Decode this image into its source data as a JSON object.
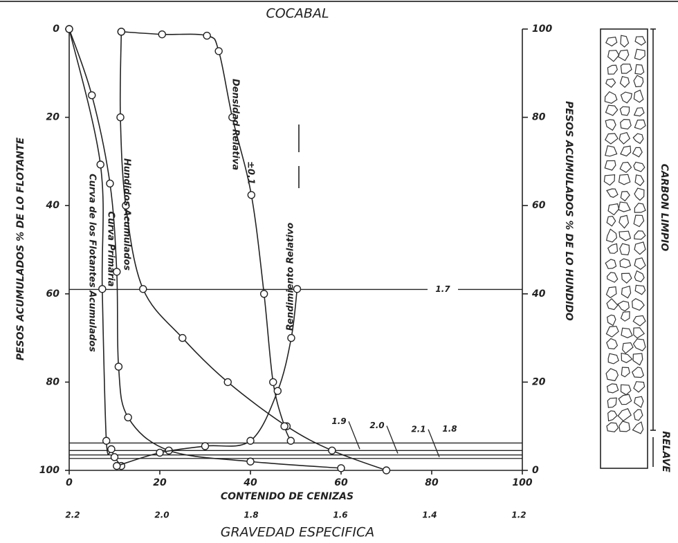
{
  "chart_data": {
    "type": "line",
    "title": "COCABAL",
    "xlabel": "CONTENIDO DE CENIZAS",
    "x2label": "GRAVEDAD ESPECIFICA",
    "ylabel": "PESOS ACUMULADOS % DE LO FLOTANTE",
    "y2label": "PESOS ACUMULADOS % DE LO HUNDIDO",
    "xlim": [
      0,
      100
    ],
    "xticks": [
      0,
      20,
      40,
      60,
      80,
      100
    ],
    "x2lim": [
      2.2,
      1.2
    ],
    "x2ticks": [
      2.2,
      {
        "value": 2,
        "label": "2.0"
      },
      1.8,
      1.6,
      1.4,
      1.2
    ],
    "ylim": [
      100,
      0
    ],
    "yticks": [
      0,
      20,
      40,
      60,
      80,
      100
    ],
    "y2lim": [
      0,
      100
    ],
    "y2ticks": [
      100,
      80,
      60,
      40,
      20,
      0
    ],
    "color": "#222222",
    "series": [
      {
        "name": "Curva de los Flotantes Acumulados",
        "x": [
          0,
          6.9,
          7.3,
          8.2,
          9.3,
          10.0,
          11.5
        ],
        "values": [
          0,
          30.7,
          58.9,
          93.3,
          95.2,
          97,
          99
        ]
      },
      {
        "name": "Curva Primaria",
        "x": [
          0,
          5,
          9,
          10.5,
          10.9,
          13,
          22,
          40,
          60
        ],
        "values": [
          0,
          15,
          35,
          55,
          76.5,
          88,
          95.5,
          98,
          99.5
        ]
      },
      {
        "name": "Hundidos Acumulados",
        "x": [
          11.5,
          11.3,
          12.5,
          16.3,
          25,
          35,
          48,
          58,
          70
        ],
        "values": [
          0.6,
          20,
          40,
          58.9,
          70,
          80,
          90,
          95.5,
          100
        ]
      },
      {
        "name": "Densidad Relativa",
        "x": [
          11.5,
          20.5,
          30.4,
          33,
          36,
          40.2,
          43,
          45,
          47.5,
          48.9
        ],
        "values": [
          0.6,
          1.2,
          1.5,
          5,
          20,
          37.6,
          60,
          80,
          90,
          93.3
        ]
      },
      {
        "name": "Rendimiento Relativo",
        "x": [
          10.5,
          20,
          30,
          40,
          46,
          49,
          50.3
        ],
        "values": [
          99,
          96,
          94.5,
          93.3,
          82,
          70,
          58.9
        ]
      }
    ],
    "annotations": [
      "±0.1"
    ],
    "gravity_lines": [
      {
        "label": "1.7",
        "y": 59
      },
      {
        "label": "1.8",
        "y": 93.8
      },
      {
        "label": "1.9",
        "y": 95.5
      },
      {
        "label": "2.0",
        "y": 96.5
      },
      {
        "label": "2.1",
        "y": 97.3
      }
    ]
  },
  "column": {
    "clean_label": "CARBON LIMPIO",
    "reject_label": "RELAVE"
  }
}
